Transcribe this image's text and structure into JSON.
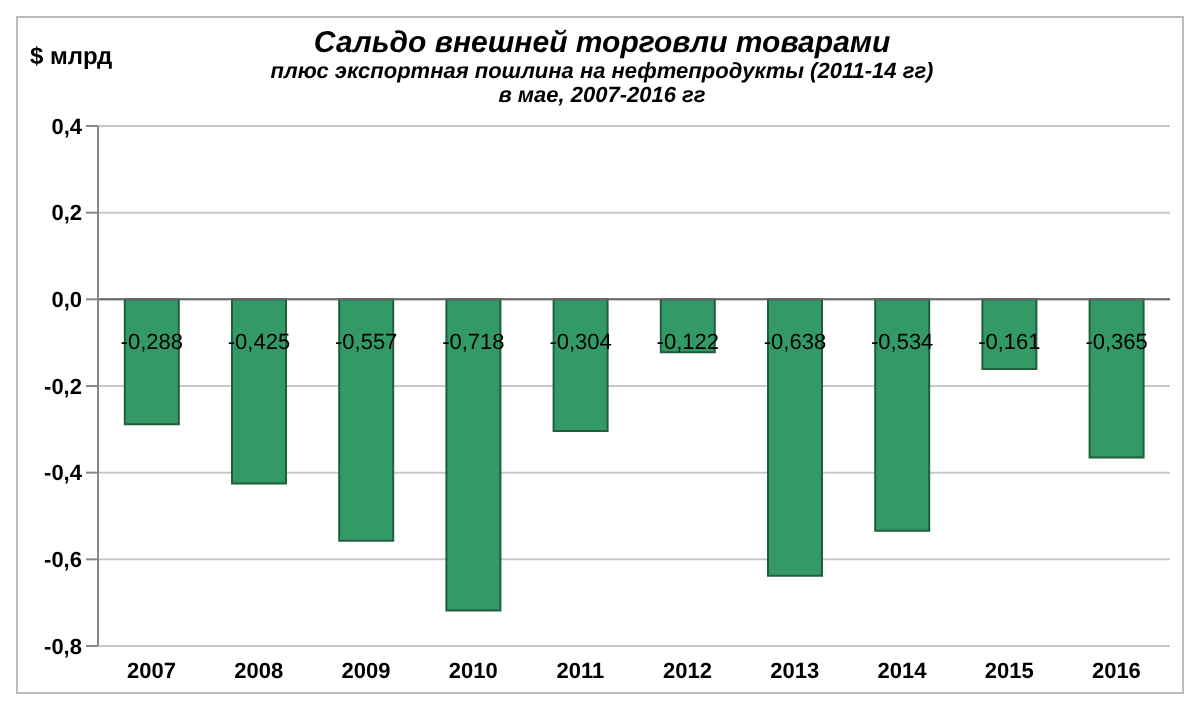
{
  "chart_data": {
    "type": "bar",
    "title": "Сальдо внешней торговли товарами",
    "subtitle": "плюс экспортная пошлина на нефтепродукты (2011-14 гг)\nв мае, 2007-2016 гг",
    "ylabel": "$ млрд",
    "categories": [
      "2007",
      "2008",
      "2009",
      "2010",
      "2011",
      "2012",
      "2013",
      "2014",
      "2015",
      "2016"
    ],
    "values": [
      -0.288,
      -0.425,
      -0.557,
      -0.718,
      -0.304,
      -0.122,
      -0.638,
      -0.534,
      -0.161,
      -0.365
    ],
    "value_labels": [
      "-0,288",
      "-0,425",
      "-0,557",
      "-0,718",
      "-0,304",
      "-0,122",
      "-0,638",
      "-0,534",
      "-0,161",
      "-0,365"
    ],
    "color": "#339966",
    "ylim": [
      -0.8,
      0.4
    ],
    "yticks": [
      {
        "value": -0.8,
        "label": "-0,8"
      },
      {
        "value": -0.6,
        "label": "-0,6"
      },
      {
        "value": -0.4,
        "label": "-0,4"
      },
      {
        "value": -0.2,
        "label": "-0,2"
      },
      {
        "value": 0,
        "label": "0,0"
      },
      {
        "value": 0.2,
        "label": "0,2"
      },
      {
        "value": 0.4,
        "label": "0,4"
      }
    ],
    "grid": "y",
    "legend": false
  }
}
